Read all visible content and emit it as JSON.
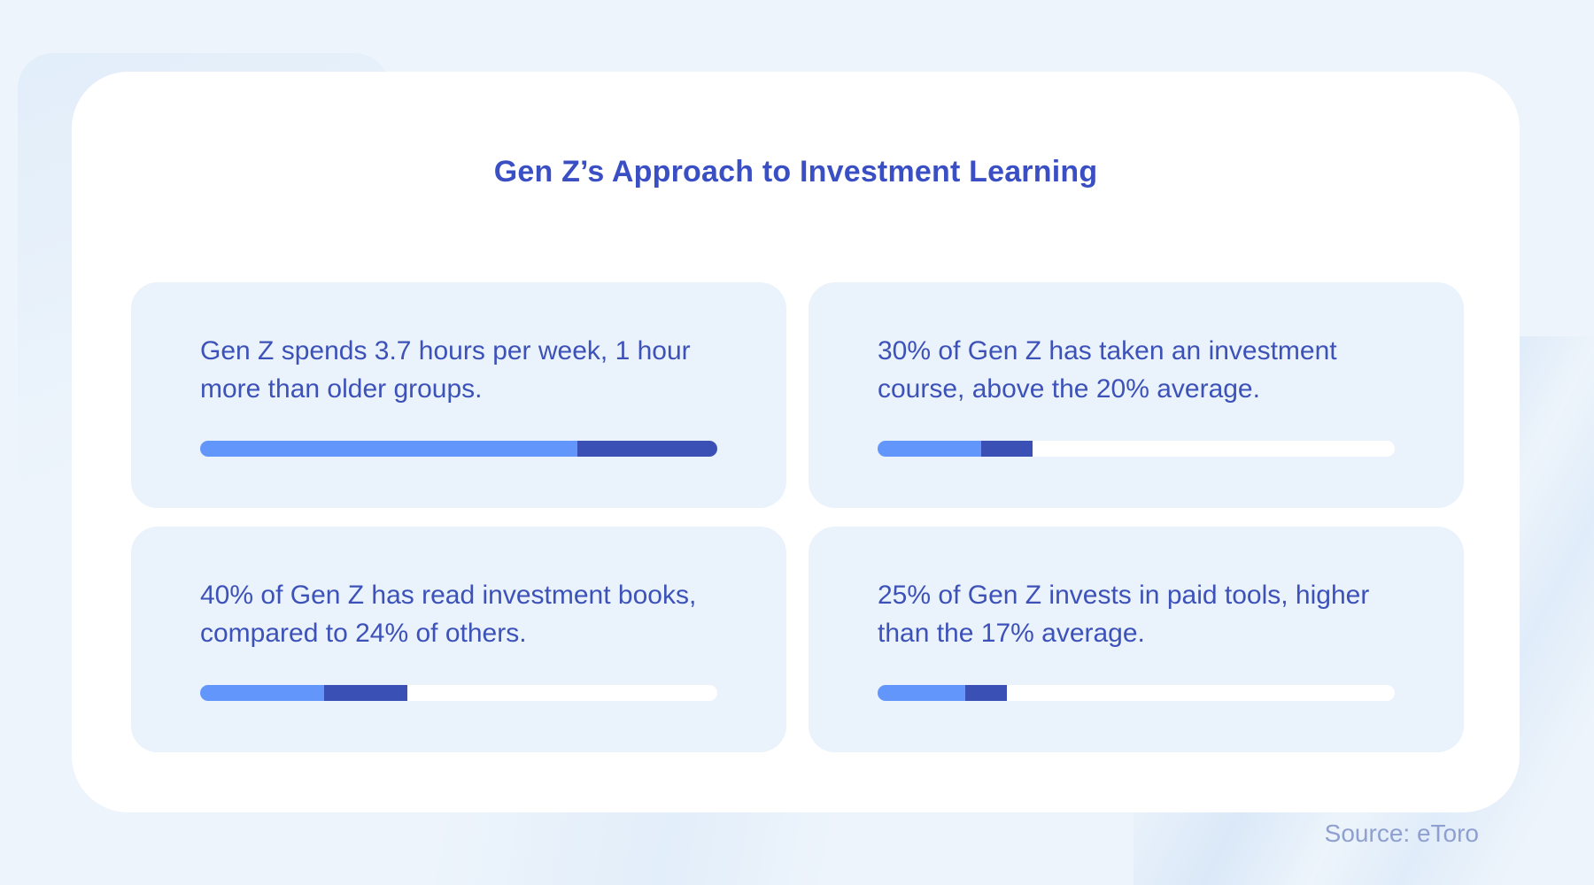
{
  "title": "Gen Z’s Approach to Investment Learning",
  "source_credit": "Source: eToro",
  "colors": {
    "page_background": "#edf4fb",
    "panel": "#ffffff",
    "card_background": "#eaf2fc",
    "bar_light": "#6296fa",
    "bar_dark": "#3a50b4",
    "bar_track": "#ffffff",
    "title_text": "#3b4fc4",
    "body_text": "#3d52b8",
    "source_text": "#8fa0d0"
  },
  "cards": [
    {
      "line1": "Gen Z spends 3.7 hours per week, 1 hour",
      "line2": "more than older groups.",
      "bar": {
        "light_pct": 73,
        "dark_pct": 27
      }
    },
    {
      "line1": "30% of Gen Z has taken an investment",
      "line2": "course, above the 20% average.",
      "bar": {
        "light_pct": 20,
        "dark_pct": 10
      }
    },
    {
      "line1": "40% of Gen Z has read investment books,",
      "line2": "compared to 24% of others.",
      "bar": {
        "light_pct": 24,
        "dark_pct": 16
      }
    },
    {
      "line1": "25% of Gen Z invests in paid tools, higher",
      "line2": "than the 17% average.",
      "bar": {
        "light_pct": 17,
        "dark_pct": 8
      }
    }
  ],
  "chart_data": {
    "type": "bar",
    "title": "Gen Z’s Approach to Investment Learning",
    "source": "Source: eToro",
    "legend_position": "none",
    "bar_segment_meaning": {
      "light_blue": "comparison / average value",
      "dark_blue": "Gen Z value above the average",
      "white_track": "remainder of scale"
    },
    "items": [
      {
        "statement": "Gen Z spends 3.7 hours per week, 1 hour more than older groups.",
        "genz_value": 3.7,
        "comparison_value": 2.7,
        "unit": "hours per week",
        "bar_scale_max": 3.7,
        "segments_pct": {
          "light": 73,
          "dark": 27,
          "empty": 0
        }
      },
      {
        "statement": "30% of Gen Z has taken an investment course, above the 20% average.",
        "genz_value": 30,
        "comparison_value": 20,
        "unit": "%",
        "bar_scale_max": 100,
        "segments_pct": {
          "light": 20,
          "dark": 10,
          "empty": 70
        }
      },
      {
        "statement": "40% of Gen Z has read investment books, compared to 24% of others.",
        "genz_value": 40,
        "comparison_value": 24,
        "unit": "%",
        "bar_scale_max": 100,
        "segments_pct": {
          "light": 24,
          "dark": 16,
          "empty": 60
        }
      },
      {
        "statement": "25% of Gen Z invests in paid tools, higher than the 17% average.",
        "genz_value": 25,
        "comparison_value": 17,
        "unit": "%",
        "bar_scale_max": 100,
        "segments_pct": {
          "light": 17,
          "dark": 8,
          "empty": 75
        }
      }
    ]
  }
}
